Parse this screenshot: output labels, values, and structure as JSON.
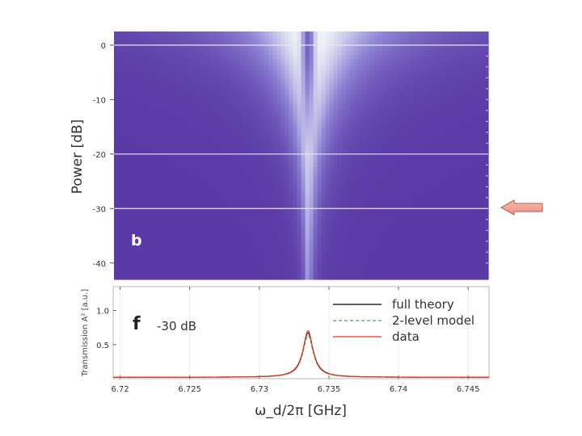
{
  "chart_data": [
    {
      "type": "heatmap",
      "panel_label": "b",
      "ylabel": "Power [dB]",
      "xlabel": "",
      "x_range": [
        6.7195,
        6.7465
      ],
      "ylim": [
        -43,
        2.5
      ],
      "yticks": [
        0,
        -10,
        -20,
        -30,
        -40
      ],
      "ytick_labels": [
        "0",
        "-10",
        "-20",
        "-30",
        "-40"
      ],
      "center_frequency": 6.7335,
      "gridlines_db": [
        0,
        -20,
        -30
      ],
      "colors": {
        "low": "#5a3aa6",
        "mid": "#8f86d6",
        "high": "#eef3f6"
      },
      "marker": {
        "type": "arrow",
        "direction": "left",
        "at_db": -30,
        "color": "#f4a79a"
      }
    },
    {
      "type": "line",
      "panel_label": "f",
      "annotation": "-30 dB",
      "xlabel": "ω_d/2π [GHz]",
      "ylabel": "Transmission A² [a.u.]",
      "xlim": [
        6.7195,
        6.7465
      ],
      "ylim": [
        0,
        1.35
      ],
      "xticks": [
        6.72,
        6.725,
        6.73,
        6.735,
        6.74,
        6.745
      ],
      "xtick_labels": [
        "6.72",
        "6.725",
        "6.73",
        "6.735",
        "6.74",
        "6.745"
      ],
      "yticks": [
        1.0,
        0.5
      ],
      "ytick_labels": [
        "1.0",
        "0.5"
      ],
      "peak_center": 6.7335,
      "series": [
        {
          "name": "full theory",
          "color": "#000000",
          "dash": "solid",
          "peak": 0.68,
          "width": 0.00045
        },
        {
          "name": "2-level model",
          "color": "#3cb043",
          "dash": "dashed",
          "peak": 0.64,
          "width": 0.00045
        },
        {
          "name": "data",
          "color": "#e8362a",
          "dash": "solid",
          "peak": 0.71,
          "width": 0.00042
        }
      ],
      "baseline": 0.02
    }
  ]
}
